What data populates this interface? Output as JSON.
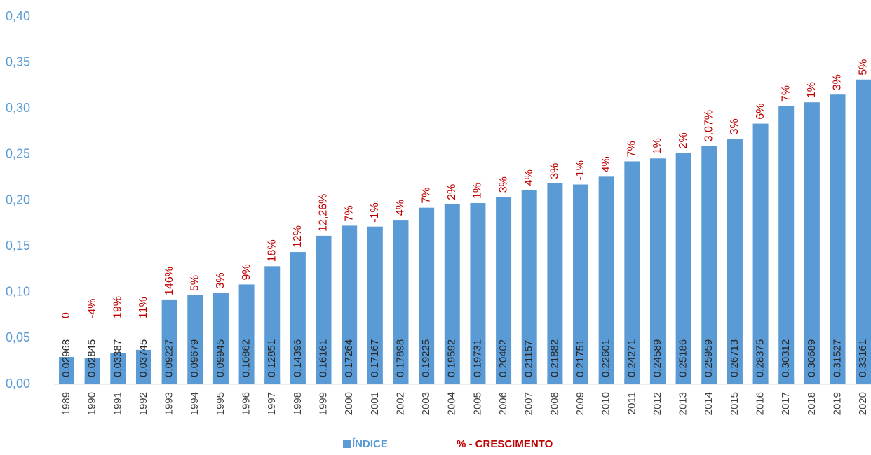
{
  "chart_data": {
    "type": "bar",
    "categories": [
      "1989",
      "1990",
      "1991",
      "1992",
      "1993",
      "1994",
      "1995",
      "1996",
      "1997",
      "1998",
      "1999",
      "2000",
      "2001",
      "2002",
      "2003",
      "2004",
      "2005",
      "2006",
      "2007",
      "2008",
      "2009",
      "2010",
      "2011",
      "2012",
      "2013",
      "2014",
      "2015",
      "2016",
      "2017",
      "2018",
      "2019",
      "2020"
    ],
    "series": [
      {
        "name": "ÍNDICE",
        "color": "#5b9bd5",
        "values": [
          0.02968,
          0.02845,
          0.03387,
          0.03745,
          0.09227,
          0.09679,
          0.09945,
          0.10862,
          0.12851,
          0.14396,
          0.16161,
          0.17264,
          0.17167,
          0.17898,
          0.19225,
          0.19592,
          0.19731,
          0.20402,
          0.21157,
          0.21882,
          0.21751,
          0.22601,
          0.24271,
          0.24589,
          0.25186,
          0.25959,
          0.26713,
          0.28375,
          0.30312,
          0.30689,
          0.31527,
          0.33161
        ],
        "value_labels": [
          "0,02968",
          "0,02845",
          "0,03387",
          "0,03745",
          "0,09227",
          "0,09679",
          "0,09945",
          "0,10862",
          "0,12851",
          "0,14396",
          "0,16161",
          "0,17264",
          "0,17167",
          "0,17898",
          "0,19225",
          "0,19592",
          "0,19731",
          "0,20402",
          "0,21157",
          "0,21882",
          "0,21751",
          "0,22601",
          "0,24271",
          "0,24589",
          "0,25186",
          "0,25959",
          "0,26713",
          "0,28375",
          "0,30312",
          "0,30689",
          "0,31527",
          "0,33161"
        ]
      },
      {
        "name": "% - CRESCIMENTO",
        "color": "#c00000",
        "values": [
          0,
          -4,
          19,
          11,
          146,
          5,
          3,
          9,
          18,
          12,
          12.26,
          7,
          -1,
          4,
          7,
          2,
          1,
          3,
          4,
          3,
          -1,
          4,
          7,
          1,
          2,
          3.07,
          3,
          6,
          7,
          1,
          3,
          5
        ],
        "value_labels": [
          "0",
          "-4%",
          "19%",
          "11%",
          "146%",
          "5%",
          "3%",
          "9%",
          "18%",
          "12%",
          "12,26%",
          "7%",
          "-1%",
          "4%",
          "7%",
          "2%",
          "1%",
          "3%",
          "4%",
          "3%",
          "-1%",
          "4%",
          "7%",
          "1%",
          "2%",
          "3,07%",
          "3%",
          "6%",
          "7%",
          "1%",
          "3%",
          "5%"
        ]
      }
    ],
    "ylim": [
      0,
      0.4
    ],
    "yticks": [
      {
        "value": 0,
        "label": "0,00"
      },
      {
        "value": 0.05,
        "label": "0,05"
      },
      {
        "value": 0.1,
        "label": "0,10"
      },
      {
        "value": 0.15,
        "label": "0,15"
      },
      {
        "value": 0.2,
        "label": "0,20"
      },
      {
        "value": 0.25,
        "label": "0,25"
      },
      {
        "value": 0.3,
        "label": "0,30"
      },
      {
        "value": 0.35,
        "label": "0,35"
      },
      {
        "value": 0.4,
        "label": "0,40"
      }
    ],
    "grid": false,
    "legend": "bottom"
  }
}
